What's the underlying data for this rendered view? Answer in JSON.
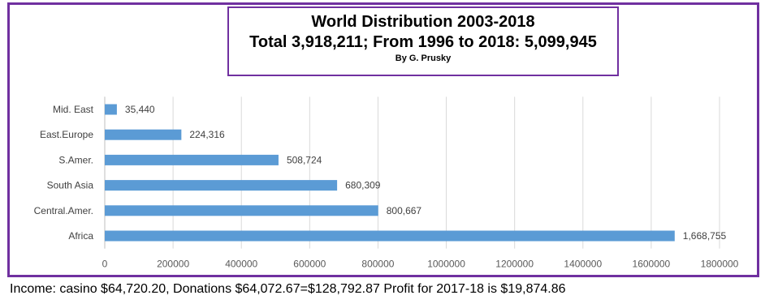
{
  "title_box": {
    "line1": "World Distribution 2003-2018",
    "line2": "Total 3,918,211; From 1996 to 2018: 5,099,945",
    "line3": "By G. Prusky"
  },
  "chart_data": {
    "type": "bar",
    "orientation": "horizontal",
    "categories": [
      "Mid. East",
      "East.Europe",
      "S.Amer.",
      "South Asia",
      "Central.Amer.",
      "Africa"
    ],
    "values": [
      35440,
      224316,
      508724,
      680309,
      800667,
      1668755
    ],
    "value_labels": [
      "35,440",
      "224,316",
      "508,724",
      "680,309",
      "800,667",
      "1,668,755"
    ],
    "xlim": [
      0,
      1800000
    ],
    "x_ticks": [
      "0",
      "200000",
      "400000",
      "600000",
      "800000",
      "1000000",
      "1200000",
      "1400000",
      "1600000",
      "1800000"
    ],
    "grid": true,
    "bar_color": "#5b9bd5",
    "grid_color": "#d9d9d9",
    "border_color": "#7030a0"
  },
  "footer": {
    "text": "Income: casino $64,720.20, Donations $64,072.67=$128,792.87   Profit for 2017-18 is $19,874.86"
  }
}
